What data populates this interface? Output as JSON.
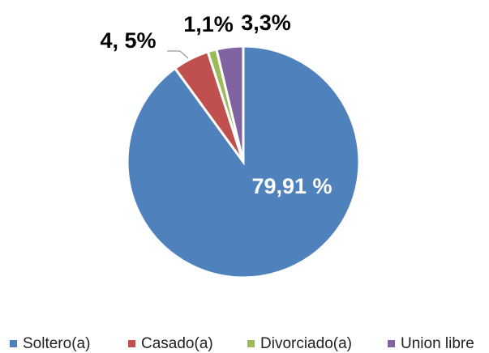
{
  "chart_data": {
    "type": "pie",
    "categories": [
      "Soltero(a)",
      "Casado(a)",
      "Divorciado(a)",
      "Union libre"
    ],
    "values": [
      79.91,
      4.5,
      1.1,
      3.3
    ],
    "value_labels": [
      "79,91 %",
      "4, 5%",
      "1,1%",
      "3,3%"
    ],
    "colors": [
      "#4f81bd",
      "#c0504d",
      "#9bbb59",
      "#8064a2"
    ],
    "legend": "bottom"
  }
}
